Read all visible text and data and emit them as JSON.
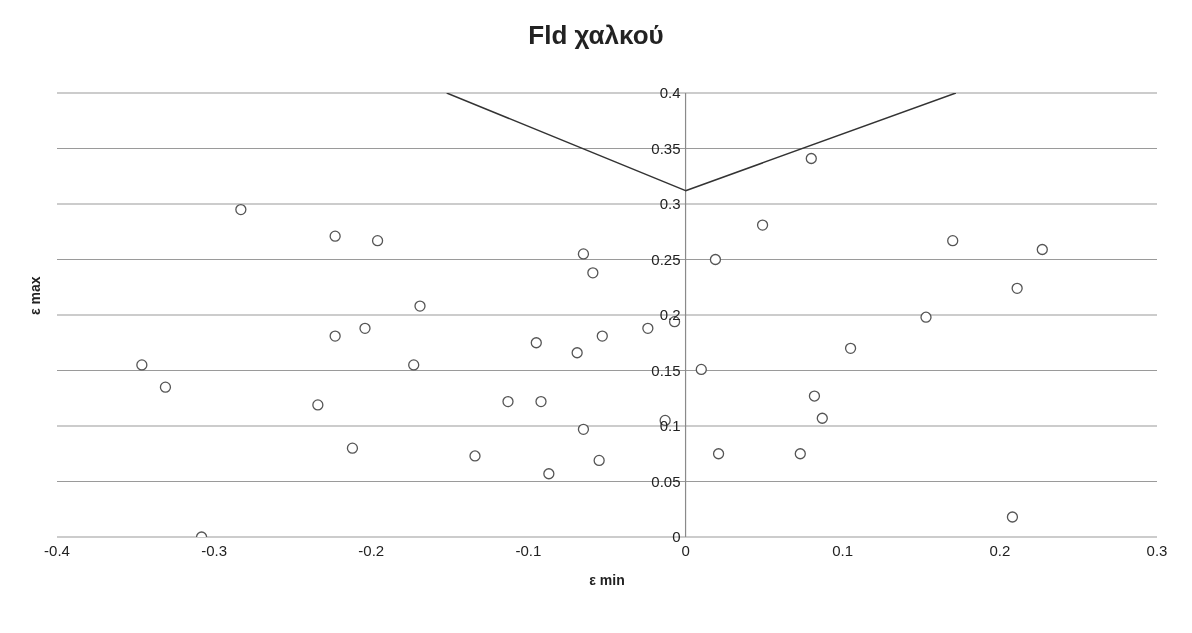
{
  "chart_data": {
    "type": "scatter",
    "title": "Fld χαλκού",
    "xlabel": "ε min",
    "ylabel": "ε max",
    "x": [
      -0.346,
      -0.331,
      -0.283,
      -0.223,
      -0.196,
      -0.169,
      -0.223,
      -0.204,
      -0.173,
      -0.234,
      -0.212,
      -0.308,
      -0.134,
      -0.113,
      -0.092,
      -0.095,
      -0.087,
      -0.065,
      -0.059,
      -0.069,
      -0.053,
      -0.065,
      -0.055,
      -0.024,
      -0.007,
      -0.013,
      0.01,
      0.019,
      0.021,
      0.049,
      0.08,
      0.082,
      0.087,
      0.073,
      0.105,
      0.153,
      0.17,
      0.211,
      0.227,
      0.208
    ],
    "series": [
      {
        "color": "#555555",
        "marker": "circle",
        "values": [
          0.155,
          0.135,
          0.295,
          0.271,
          0.267,
          0.208,
          0.181,
          0.188,
          0.155,
          0.119,
          0.08,
          0.0,
          0.073,
          0.122,
          0.122,
          0.175,
          0.057,
          0.255,
          0.238,
          0.166,
          0.181,
          0.097,
          0.069,
          0.188,
          0.194,
          0.105,
          0.151,
          0.25,
          0.075,
          0.281,
          0.341,
          0.127,
          0.107,
          0.075,
          0.17,
          0.198,
          0.267,
          0.224,
          0.259,
          0.018
        ]
      },
      {
        "type": "line",
        "color": "#333333",
        "marker": "none",
        "line_style": "solid",
        "x": [
          -0.152,
          0,
          0.172
        ],
        "values": [
          0.4,
          0.312,
          0.4
        ]
      }
    ],
    "xlim": [
      -0.4,
      0.3
    ],
    "xticks": [
      -0.4,
      -0.3,
      -0.2,
      -0.1,
      0,
      0.1,
      0.2,
      0.3
    ],
    "ylim": [
      0,
      0.4
    ],
    "yticks": [
      0,
      0.05,
      0.1,
      0.15,
      0.2,
      0.25,
      0.3,
      0.35,
      0.4
    ],
    "grid": "y",
    "legend": false
  }
}
